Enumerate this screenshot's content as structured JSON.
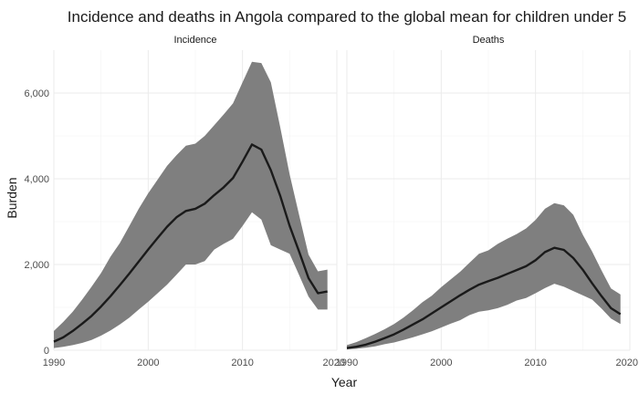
{
  "chart_data": {
    "type": "line",
    "title": "Incidence and deaths in Angola compared to the global mean for children under 5",
    "xlabel": "Year",
    "ylabel": "Burden",
    "xlim": [
      1990,
      2020
    ],
    "ylim": [
      0,
      7000
    ],
    "x_ticks": [
      1990,
      2000,
      2010,
      2020
    ],
    "x_tick_labels": [
      "1990",
      "2000",
      "2010",
      "2020"
    ],
    "y_ticks": [
      0,
      2000,
      4000,
      6000
    ],
    "y_tick_labels": [
      "0",
      "2,000",
      "4,000",
      "6,000"
    ],
    "x": [
      1990,
      1991,
      1992,
      1993,
      1994,
      1995,
      1996,
      1997,
      1998,
      1999,
      2000,
      2001,
      2002,
      2003,
      2004,
      2005,
      2006,
      2007,
      2008,
      2009,
      2010,
      2011,
      2012,
      2013,
      2014,
      2015,
      2016,
      2017,
      2018,
      2019
    ],
    "panels": [
      {
        "name": "Incidence",
        "mean": [
          200,
          300,
          450,
          620,
          800,
          1020,
          1260,
          1520,
          1790,
          2070,
          2350,
          2620,
          2880,
          3100,
          3250,
          3300,
          3420,
          3620,
          3800,
          4020,
          4400,
          4800,
          4680,
          4200,
          3600,
          2900,
          2300,
          1680,
          1330,
          1370
        ],
        "lower": [
          50,
          80,
          120,
          170,
          240,
          340,
          460,
          600,
          760,
          950,
          1130,
          1330,
          1530,
          1760,
          2000,
          2000,
          2080,
          2350,
          2480,
          2600,
          2900,
          3220,
          3050,
          2450,
          2350,
          2250,
          1750,
          1250,
          950,
          950
        ],
        "upper": [
          450,
          660,
          900,
          1180,
          1480,
          1800,
          2180,
          2500,
          2900,
          3300,
          3660,
          3980,
          4300,
          4550,
          4770,
          4820,
          5000,
          5250,
          5500,
          5760,
          6250,
          6730,
          6700,
          6250,
          5200,
          4100,
          3150,
          2230,
          1840,
          1880
        ]
      },
      {
        "name": "Deaths",
        "mean": [
          50,
          80,
          130,
          200,
          280,
          370,
          480,
          600,
          720,
          860,
          1000,
          1140,
          1280,
          1410,
          1530,
          1610,
          1690,
          1780,
          1870,
          1960,
          2100,
          2290,
          2390,
          2340,
          2150,
          1880,
          1560,
          1260,
          980,
          840
        ],
        "lower": [
          20,
          35,
          60,
          90,
          140,
          180,
          240,
          300,
          370,
          440,
          530,
          620,
          700,
          820,
          900,
          930,
          980,
          1060,
          1160,
          1220,
          1330,
          1450,
          1550,
          1480,
          1380,
          1280,
          1180,
          970,
          740,
          610
        ],
        "upper": [
          120,
          190,
          280,
          380,
          490,
          610,
          760,
          930,
          1120,
          1270,
          1470,
          1650,
          1830,
          2040,
          2250,
          2330,
          2480,
          2600,
          2710,
          2840,
          3040,
          3300,
          3430,
          3380,
          3160,
          2700,
          2300,
          1860,
          1440,
          1300
        ]
      }
    ]
  }
}
